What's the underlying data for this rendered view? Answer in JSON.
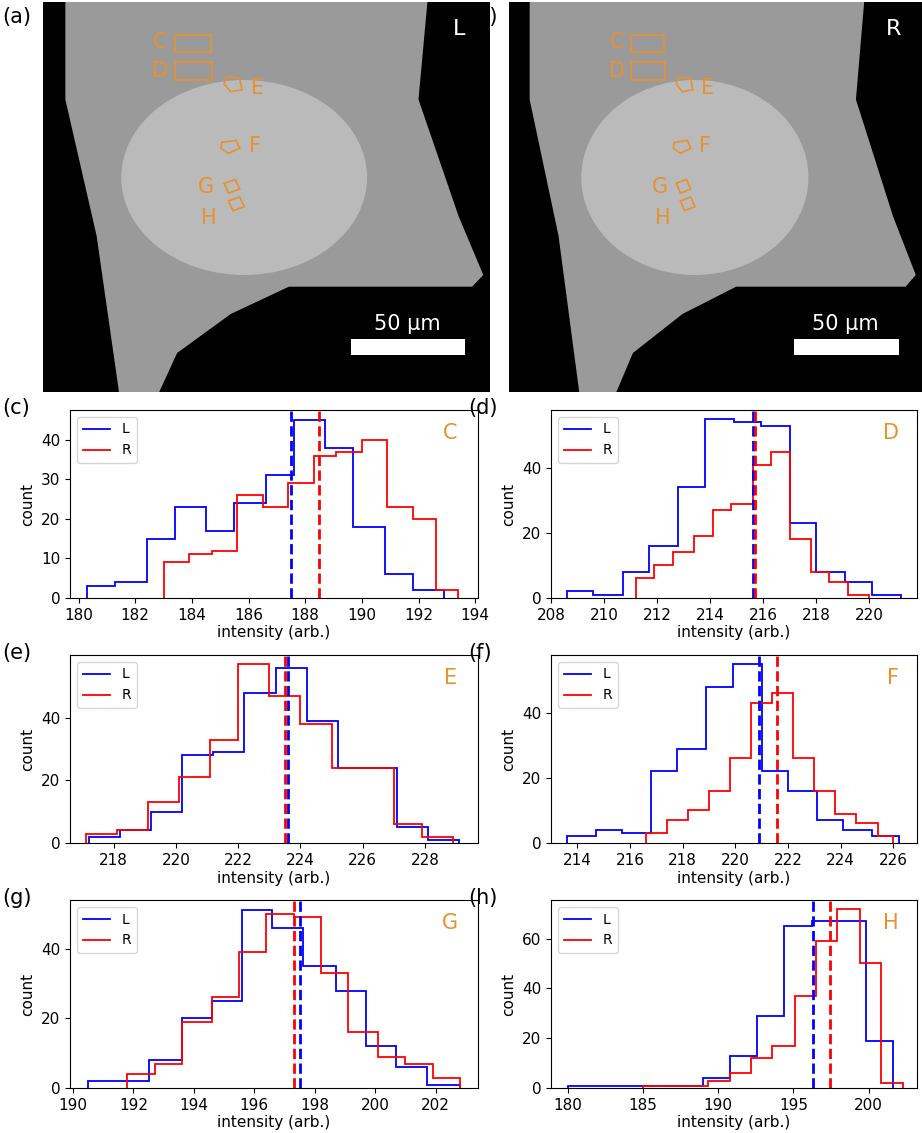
{
  "images": [
    {
      "panel": "(a)",
      "channel": "L",
      "scale_bar": "50 µm",
      "color": "#e8912d",
      "regions": [
        "C",
        "D",
        "E",
        "F",
        "G",
        "H"
      ]
    },
    {
      "panel": "(b)",
      "channel": "R",
      "scale_bar": "50 µm",
      "color": "#e8912d",
      "regions": [
        "C",
        "D",
        "E",
        "F",
        "G",
        "H"
      ]
    }
  ],
  "chart_data": [
    {
      "type": "histogram",
      "panel": "(c)",
      "region": "C",
      "xlabel": "intensity (arb.)",
      "ylabel": "count",
      "xlim": [
        179.7,
        194.1
      ],
      "ylim": [
        0,
        47.5
      ],
      "xticks": [
        180,
        182,
        184,
        186,
        188,
        190,
        192,
        194
      ],
      "yticks": [
        0,
        10,
        20,
        30,
        40
      ],
      "legend": "upper left",
      "line_style": "dashed",
      "series": [
        {
          "name": "L",
          "color": "blue",
          "bins": [
            180.3,
            181.3,
            182.4,
            183.4,
            184.5,
            185.5,
            186.6,
            187.6,
            188.7,
            189.7,
            190.8,
            191.8,
            192.9
          ],
          "values": [
            3,
            4,
            15,
            23,
            17,
            24,
            31,
            45,
            38,
            18,
            6,
            2
          ],
          "mean": 187.5
        },
        {
          "name": "R",
          "color": "red",
          "bins": [
            183.0,
            183.9,
            184.7,
            185.6,
            186.5,
            187.4,
            188.3,
            189.1,
            190.0,
            190.9,
            191.8,
            192.6,
            193.4
          ],
          "values": [
            9,
            11,
            12,
            26,
            23,
            29,
            36,
            37,
            40,
            23,
            20,
            2
          ],
          "mean": 188.5
        }
      ]
    },
    {
      "type": "histogram",
      "panel": "(d)",
      "region": "D",
      "xlabel": "intensity (arb.)",
      "ylabel": "count",
      "xlim": [
        208.0,
        221.8
      ],
      "ylim": [
        0,
        57.8
      ],
      "xticks": [
        208,
        210,
        212,
        214,
        216,
        218,
        220
      ],
      "yticks": [
        0,
        20,
        40
      ],
      "legend": "upper left",
      "line_style": "dashed",
      "series": [
        {
          "name": "L",
          "color": "blue",
          "bins": [
            208.6,
            209.6,
            210.7,
            211.7,
            212.8,
            213.8,
            214.9,
            215.9,
            217.0,
            218.0,
            219.1,
            220.1,
            221.2
          ],
          "values": [
            2,
            1,
            8,
            16,
            34,
            55,
            54,
            53,
            23,
            8,
            5,
            1
          ],
          "mean": 215.6
        },
        {
          "name": "R",
          "color": "red",
          "bins": [
            211.2,
            211.9,
            212.6,
            213.4,
            214.1,
            214.8,
            215.6,
            216.3,
            217.0,
            217.8,
            218.5,
            219.2,
            220.0
          ],
          "values": [
            6,
            10,
            14,
            19,
            27,
            29,
            41,
            45,
            18,
            8,
            5,
            1
          ],
          "mean": 215.7
        }
      ]
    },
    {
      "type": "histogram",
      "panel": "(e)",
      "region": "E",
      "xlabel": "intensity (arb.)",
      "ylabel": "count",
      "xlim": [
        216.6,
        229.7
      ],
      "ylim": [
        0,
        60
      ],
      "xticks": [
        218,
        220,
        222,
        224,
        226,
        228
      ],
      "yticks": [
        0,
        20,
        40
      ],
      "legend": "upper left",
      "line_style": "dashed",
      "series": [
        {
          "name": "L",
          "color": "blue",
          "bins": [
            217.2,
            218.2,
            219.2,
            220.2,
            221.2,
            222.2,
            223.2,
            224.2,
            225.2,
            226.1,
            227.1,
            228.1,
            229.1
          ],
          "values": [
            2,
            4,
            10,
            28,
            29,
            48,
            56,
            39,
            24,
            24,
            5,
            1
          ],
          "mean": 223.6
        },
        {
          "name": "R",
          "color": "red",
          "bins": [
            217.1,
            218.1,
            219.1,
            220.1,
            221.1,
            222.0,
            223.0,
            224.0,
            225.0,
            226.0,
            227.0,
            227.9,
            228.9
          ],
          "values": [
            3,
            4,
            13,
            21,
            33,
            57,
            47,
            38,
            24,
            24,
            6,
            2
          ],
          "mean": 223.5
        }
      ]
    },
    {
      "type": "histogram",
      "panel": "(f)",
      "region": "F",
      "xlabel": "intensity (arb.)",
      "ylabel": "count",
      "xlim": [
        213.0,
        226.9
      ],
      "ylim": [
        0,
        57.8
      ],
      "xticks": [
        214,
        216,
        218,
        220,
        222,
        224,
        226
      ],
      "yticks": [
        0,
        20,
        40
      ],
      "legend": "upper left",
      "line_style": "dashed",
      "series": [
        {
          "name": "L",
          "color": "blue",
          "bins": [
            213.6,
            214.7,
            215.7,
            216.8,
            217.8,
            218.9,
            219.9,
            221.0,
            222.0,
            223.1,
            224.1,
            225.2,
            226.2
          ],
          "values": [
            2,
            4,
            3,
            22,
            29,
            48,
            55,
            22,
            16,
            7,
            4,
            2
          ],
          "mean": 220.9
        },
        {
          "name": "R",
          "color": "red",
          "bins": [
            216.6,
            217.4,
            218.2,
            219.0,
            219.8,
            220.6,
            221.4,
            222.2,
            223.0,
            223.8,
            224.6,
            225.4,
            226.0
          ],
          "values": [
            3,
            7,
            10,
            16,
            26,
            43,
            46,
            26,
            16,
            9,
            6,
            2
          ],
          "mean": 221.6
        }
      ]
    },
    {
      "type": "histogram",
      "panel": "(g)",
      "region": "G",
      "xlabel": "intensity (arb.)",
      "ylabel": "count",
      "xlim": [
        189.9,
        203.4
      ],
      "ylim": [
        0,
        54
      ],
      "xticks": [
        190,
        192,
        194,
        196,
        198,
        200,
        202
      ],
      "yticks": [
        0,
        20,
        40
      ],
      "legend": "upper left",
      "line_style": "dashed",
      "series": [
        {
          "name": "L",
          "color": "blue",
          "bins": [
            190.5,
            191.5,
            192.5,
            193.6,
            194.6,
            195.6,
            196.6,
            197.6,
            198.7,
            199.7,
            200.7,
            201.7,
            202.8
          ],
          "values": [
            2,
            2,
            8,
            20,
            25,
            51,
            46,
            35,
            28,
            12,
            6,
            1
          ],
          "mean": 197.5
        },
        {
          "name": "R",
          "color": "red",
          "bins": [
            191.8,
            192.7,
            193.6,
            194.6,
            195.5,
            196.4,
            197.3,
            198.2,
            199.1,
            200.1,
            201.0,
            201.9,
            202.8
          ],
          "values": [
            4,
            7,
            19,
            26,
            39,
            50,
            49,
            33,
            16,
            9,
            7,
            3
          ],
          "mean": 197.3
        }
      ]
    },
    {
      "type": "histogram",
      "panel": "(h)",
      "region": "H",
      "xlabel": "intensity (arb.)",
      "ylabel": "count",
      "xlim": [
        178.9,
        203.2
      ],
      "ylim": [
        0,
        75.5
      ],
      "xticks": [
        180,
        185,
        190,
        195,
        200
      ],
      "yticks": [
        0,
        20,
        40,
        60
      ],
      "legend": "upper left",
      "line_style": "dashed",
      "series": [
        {
          "name": "L",
          "color": "blue",
          "bins": [
            180.0,
            181.8,
            183.6,
            185.4,
            187.2,
            189.0,
            190.8,
            192.6,
            194.4,
            196.2,
            198.0,
            199.8,
            201.6
          ],
          "values": [
            1,
            1,
            1,
            1,
            1,
            4,
            13,
            29,
            65,
            67,
            67,
            19
          ],
          "mean": 196.3
        },
        {
          "name": "R",
          "color": "red",
          "bins": [
            185.0,
            186.4,
            187.9,
            189.3,
            190.8,
            192.2,
            193.6,
            195.1,
            196.5,
            197.9,
            199.4,
            200.8,
            202.3
          ],
          "values": [
            1,
            1,
            1,
            3,
            6,
            12,
            17,
            37,
            59,
            72,
            50,
            2
          ],
          "mean": 197.4
        }
      ]
    }
  ]
}
